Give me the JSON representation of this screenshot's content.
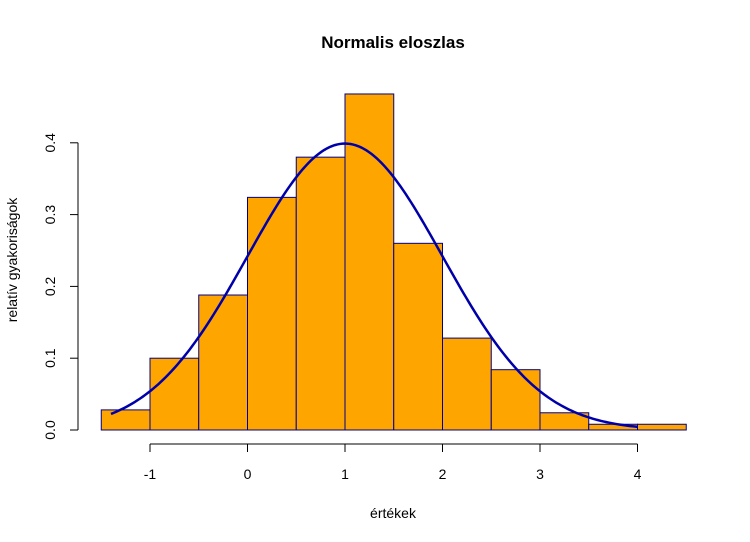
{
  "chart_data": {
    "type": "bar",
    "title": "Normalis eloszlas",
    "xlabel": "értékek",
    "ylabel": "relatív gyakoriságok",
    "xlim": [
      -1.65,
      4.6
    ],
    "ylim": [
      0,
      0.4
    ],
    "x_ticks": [
      -1,
      0,
      1,
      2,
      3,
      4
    ],
    "x_tick_labels": [
      "-1",
      "0",
      "1",
      "2",
      "3",
      "4"
    ],
    "y_ticks": [
      0.0,
      0.1,
      0.2,
      0.3,
      0.4
    ],
    "y_tick_labels": [
      "0.0",
      "0.1",
      "0.2",
      "0.3",
      "0.4"
    ],
    "bin_width": 0.5,
    "bins": [
      {
        "start": -1.5,
        "end": -1.0,
        "density": 0.028
      },
      {
        "start": -1.0,
        "end": -0.5,
        "density": 0.1
      },
      {
        "start": -0.5,
        "end": 0.0,
        "density": 0.188
      },
      {
        "start": 0.0,
        "end": 0.5,
        "density": 0.324
      },
      {
        "start": 0.5,
        "end": 1.0,
        "density": 0.38
      },
      {
        "start": 1.0,
        "end": 1.5,
        "density": 0.468
      },
      {
        "start": 1.5,
        "end": 2.0,
        "density": 0.26
      },
      {
        "start": 2.0,
        "end": 2.5,
        "density": 0.128
      },
      {
        "start": 2.5,
        "end": 3.0,
        "density": 0.084
      },
      {
        "start": 3.0,
        "end": 3.5,
        "density": 0.024
      },
      {
        "start": 3.5,
        "end": 4.0,
        "density": 0.008
      },
      {
        "start": 4.0,
        "end": 4.5,
        "density": 0.008
      }
    ],
    "curve": {
      "type": "normal-density",
      "mean": 1,
      "sd": 1,
      "x_range": [
        -1.4,
        4.0
      ]
    },
    "grid": false,
    "colors": {
      "bar_fill": "#FFA500",
      "bar_border": "#00008B",
      "curve": "#0000AA",
      "axis": "#000000"
    }
  }
}
